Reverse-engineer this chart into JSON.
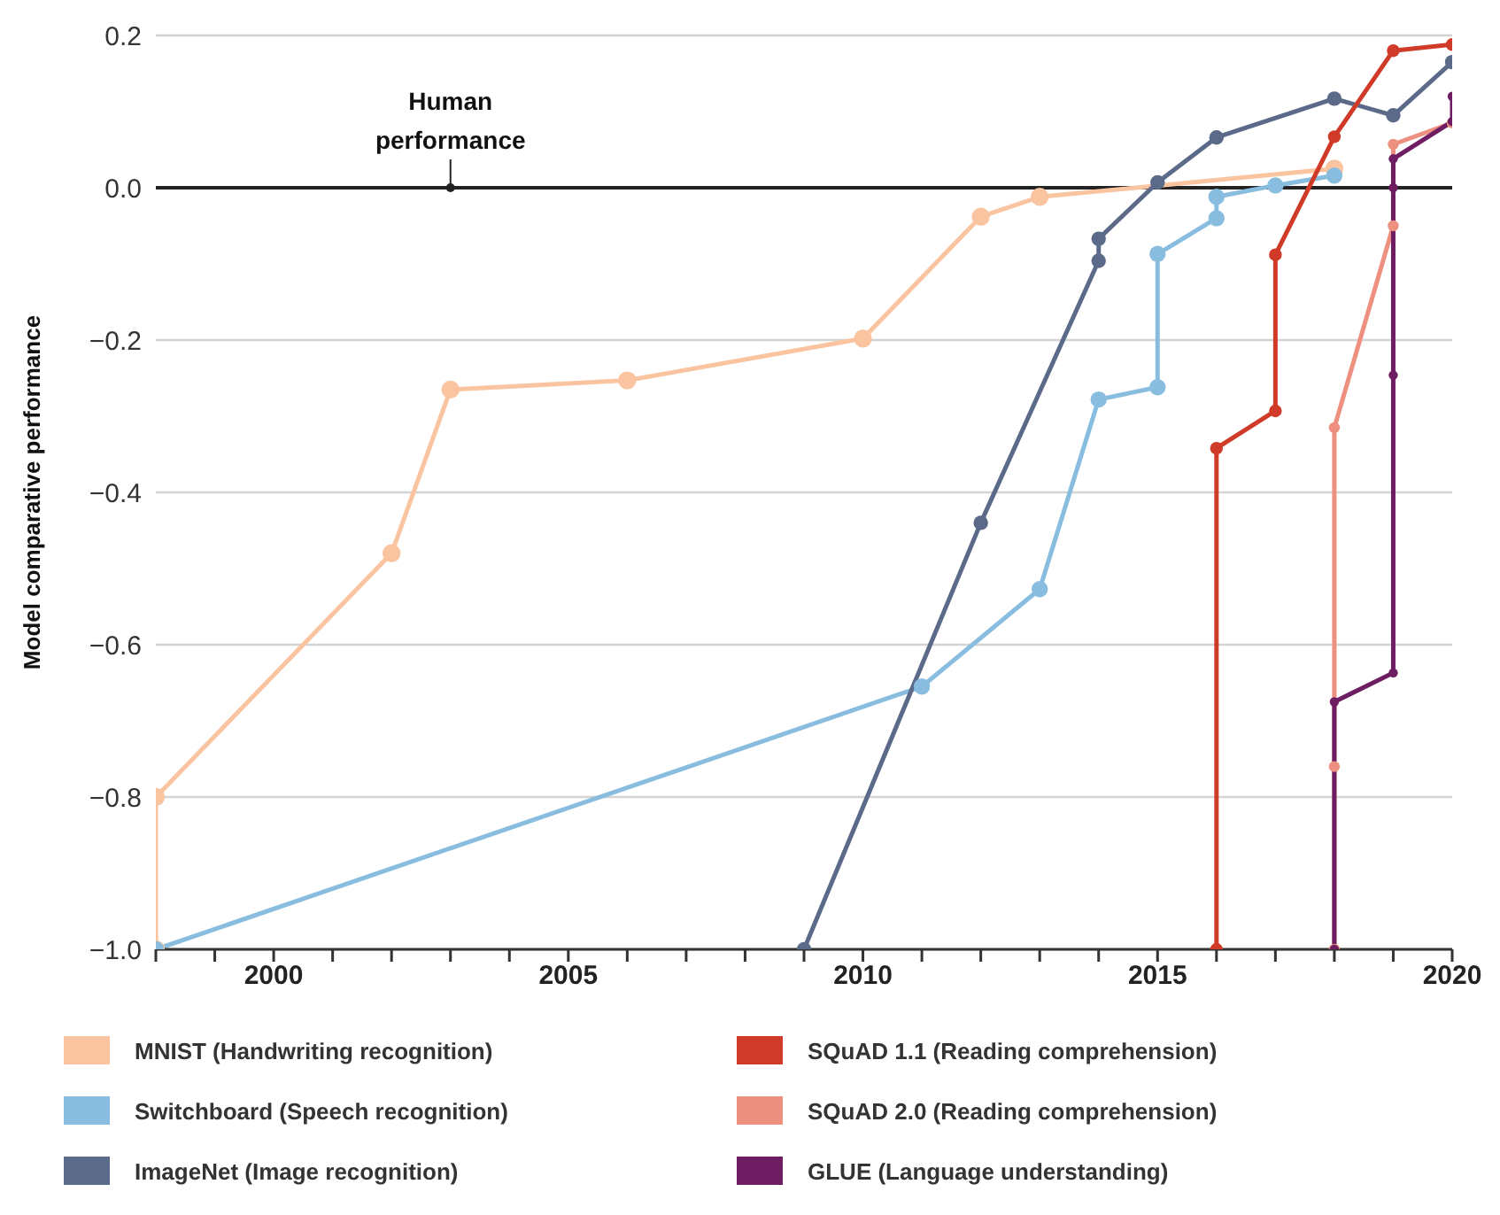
{
  "chart_data": {
    "type": "line",
    "ylabel": "Model comparative performance",
    "xlim": [
      1998,
      2020
    ],
    "xticks": [
      {
        "value": 1998,
        "label": null
      },
      {
        "value": 1999,
        "label": null
      },
      2000,
      {
        "value": 2001,
        "label": null
      },
      {
        "value": 2002,
        "label": null
      },
      {
        "value": 2003,
        "label": null
      },
      {
        "value": 2004,
        "label": null
      },
      2005,
      {
        "value": 2006,
        "label": null
      },
      {
        "value": 2007,
        "label": null
      },
      {
        "value": 2008,
        "label": null
      },
      {
        "value": 2009,
        "label": null
      },
      2010,
      {
        "value": 2011,
        "label": null
      },
      {
        "value": 2012,
        "label": null
      },
      {
        "value": 2013,
        "label": null
      },
      {
        "value": 2014,
        "label": null
      },
      2015,
      {
        "value": 2016,
        "label": null
      },
      {
        "value": 2017,
        "label": null
      },
      {
        "value": 2018,
        "label": null
      },
      {
        "value": 2019,
        "label": null
      },
      2020
    ],
    "ylim": [
      -1.0,
      0.2
    ],
    "yticks": [
      {
        "value": -1.0,
        "label": "−1.0"
      },
      {
        "value": -0.8,
        "label": "−0.8"
      },
      {
        "value": -0.6,
        "label": "−0.6"
      },
      {
        "value": -0.4,
        "label": "−0.4"
      },
      {
        "value": -0.2,
        "label": "−0.2"
      },
      {
        "value": 0,
        "label": "0.0"
      },
      {
        "value": 0.2,
        "label": "0.2"
      }
    ],
    "grid": "y",
    "legend": "bottom",
    "marker": "circle",
    "line_style": "solid",
    "ref_lines": [
      {
        "axis": "y",
        "value": 0,
        "label": null,
        "color": "#222222"
      }
    ],
    "annotations": [
      {
        "text": "Human performance",
        "x": 2003,
        "y": 0
      }
    ],
    "series": [
      {
        "name": "MNIST (Handwriting recognition)",
        "color": "#fbc4a0",
        "x": [
          1998,
          1998,
          2002,
          2003,
          2006,
          2010,
          2012,
          2013,
          2018
        ],
        "values": [
          -1.0,
          -0.8,
          -0.48,
          -0.265,
          -0.253,
          -0.198,
          -0.038,
          -0.012,
          0.025
        ]
      },
      {
        "name": "Switchboard (Speech recognition)",
        "color": "#88bde0",
        "x": [
          1998,
          2011,
          2013,
          2014,
          2015,
          2015,
          2016,
          2016,
          2017,
          2018
        ],
        "values": [
          -1.0,
          -0.655,
          -0.527,
          -0.278,
          -0.262,
          -0.087,
          -0.04,
          -0.012,
          0.003,
          0.016
        ]
      },
      {
        "name": "ImageNet (Image recognition)",
        "color": "#5a6a88",
        "x": [
          2009,
          2012,
          2014,
          2014,
          2015,
          2016,
          2018,
          2019,
          2020
        ],
        "values": [
          -1.0,
          -0.44,
          -0.096,
          -0.067,
          0.007,
          0.066,
          0.117,
          0.095,
          0.165
        ]
      },
      {
        "name": "SQuAD 1.1 (Reading comprehension)",
        "color": "#d03a28",
        "x": [
          2016,
          2016,
          2017,
          2017,
          2018,
          2019,
          2020
        ],
        "values": [
          -1.0,
          -0.342,
          -0.293,
          -0.088,
          0.067,
          0.18,
          0.188
        ]
      },
      {
        "name": "SQuAD 2.0 (Reading comprehension)",
        "color": "#ee9080",
        "x": [
          2018,
          2018,
          2018,
          2019,
          2019,
          2020
        ],
        "values": [
          -1.0,
          -0.76,
          -0.315,
          -0.05,
          0.057,
          0.085
        ]
      },
      {
        "name": "GLUE (Language understanding)",
        "color": "#6e1d62",
        "x": [
          2018,
          2018,
          2019,
          2019,
          2019,
          2019,
          2020,
          2020
        ],
        "values": [
          -1.0,
          -0.675,
          -0.637,
          -0.246,
          0.0,
          0.038,
          0.087,
          0.12
        ]
      }
    ]
  }
}
